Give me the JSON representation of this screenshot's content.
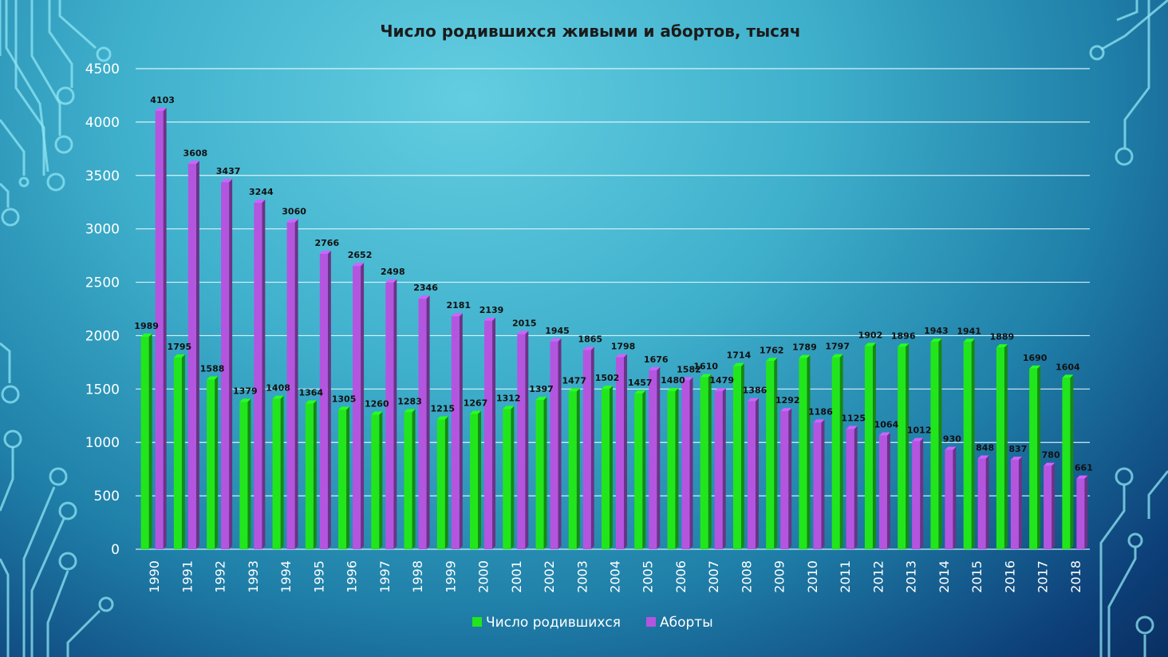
{
  "chart_data": {
    "type": "bar",
    "title": "Число родившихся живыми и абортов, тысяч",
    "xlabel": "",
    "ylabel": "",
    "ylim": [
      0,
      4500
    ],
    "yticks": [
      0,
      500,
      1000,
      1500,
      2000,
      2500,
      3000,
      3500,
      4000,
      4500
    ],
    "grid": true,
    "legend_position": "bottom",
    "categories": [
      "1990",
      "1991",
      "1992",
      "1993",
      "1994",
      "1995",
      "1996",
      "1997",
      "1998",
      "1999",
      "2000",
      "2001",
      "2002",
      "2003",
      "2004",
      "2005",
      "2006",
      "2007",
      "2008",
      "2009",
      "2010",
      "2011",
      "2012",
      "2013",
      "2014",
      "2015",
      "2016",
      "2017",
      "2018"
    ],
    "series": [
      {
        "name": "Число родившихся",
        "color": "#22e61c",
        "values": [
          1989,
          1795,
          1588,
          1379,
          1408,
          1364,
          1305,
          1260,
          1283,
          1215,
          1267,
          1312,
          1397,
          1477,
          1502,
          1457,
          1480,
          1610,
          1714,
          1762,
          1789,
          1797,
          1902,
          1896,
          1943,
          1941,
          1889,
          1690,
          1604
        ]
      },
      {
        "name": "Аборты",
        "color": "#b455e0",
        "values": [
          4103,
          3608,
          3437,
          3244,
          3060,
          2766,
          2652,
          2498,
          2346,
          2181,
          2139,
          2015,
          1945,
          1865,
          1798,
          1676,
          1582,
          1479,
          1386,
          1292,
          1186,
          1125,
          1064,
          1012,
          930,
          848,
          837,
          780,
          661
        ]
      }
    ]
  }
}
